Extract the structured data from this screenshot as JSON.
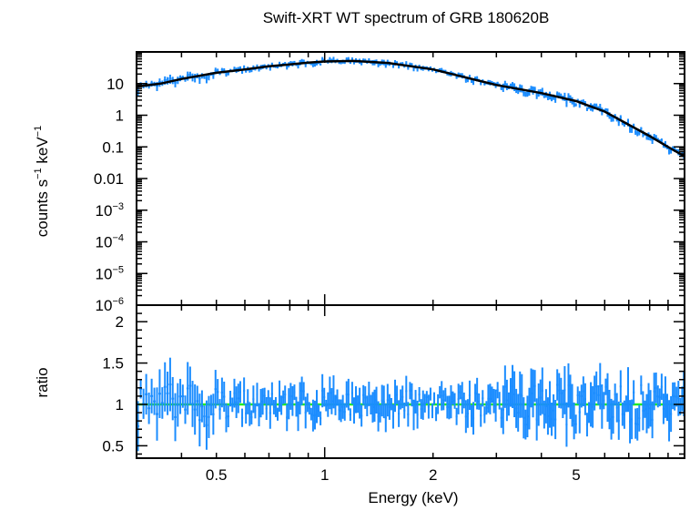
{
  "chart_data": {
    "type": "scatter",
    "title": "Swift-XRT WT spectrum of GRB 180620B",
    "xlabel": "Energy (keV)",
    "x_scale": "log",
    "xlim": [
      0.3,
      10
    ],
    "x_ticks": [
      {
        "value": 0.5,
        "label": "0.5"
      },
      {
        "value": 1,
        "label": "1"
      },
      {
        "value": 2,
        "label": "2"
      },
      {
        "value": 5,
        "label": "5"
      }
    ],
    "colors": {
      "data": "#1a8cff",
      "model": "#000000",
      "reference": "#22ee22"
    },
    "panels": [
      {
        "name": "spectrum",
        "ylabel": {
          "base": "counts s",
          "sup1": "−1",
          "mid": " keV",
          "sup2": "−1"
        },
        "y_scale": "log",
        "ylim": [
          1e-06,
          100
        ],
        "y_ticks": [
          {
            "value": 10,
            "label": "10"
          },
          {
            "value": 1,
            "label": "1"
          },
          {
            "value": 0.1,
            "label": "0.1"
          },
          {
            "value": 0.01,
            "label": "0.01"
          },
          {
            "value": 0.001,
            "base": "10",
            "exp": "−3"
          },
          {
            "value": 0.0001,
            "base": "10",
            "exp": "−4"
          },
          {
            "value": 1e-05,
            "base": "10",
            "exp": "−5"
          },
          {
            "value": 1e-06,
            "base": "10",
            "exp": "−6"
          }
        ],
        "model": {
          "x": [
            0.3,
            0.35,
            0.4,
            0.5,
            0.6,
            0.7,
            0.8,
            0.9,
            1.0,
            1.2,
            1.5,
            2.0,
            2.5,
            3.0,
            4.0,
            5.0,
            6.0,
            7.0,
            8.0,
            9.0,
            10.0
          ],
          "y": [
            8,
            10,
            14,
            22,
            28,
            35,
            40,
            46,
            50,
            52,
            45,
            28,
            15,
            9,
            5,
            2.8,
            1.3,
            0.5,
            0.22,
            0.1,
            0.05
          ]
        }
      },
      {
        "name": "ratio",
        "ylabel": "ratio",
        "y_scale": "linear",
        "ylim": [
          0.35,
          2.2
        ],
        "y_ticks": [
          {
            "value": 0.5,
            "label": "0.5"
          },
          {
            "value": 1,
            "label": "1"
          },
          {
            "value": 1.5,
            "label": "1.5"
          },
          {
            "value": 2,
            "label": "2"
          }
        ],
        "reference_line": 1
      }
    ]
  }
}
